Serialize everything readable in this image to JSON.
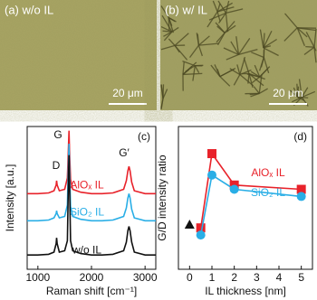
{
  "panels": [
    {
      "label": "(a) w/o IL",
      "scale_bar": "20 μm"
    },
    {
      "label": "(b) w/ IL",
      "scale_bar": "20 μm"
    }
  ],
  "chart_data": [
    {
      "type": "line",
      "label": "(c)",
      "x_label": "Raman shift [cm⁻¹]",
      "y_label": "Intensity [a.u.]",
      "annotations": [
        "D",
        "G",
        "G′"
      ],
      "x": [
        800,
        1000,
        1200,
        1300,
        1340,
        1350,
        1360,
        1400,
        1500,
        1550,
        1570,
        1580,
        1590,
        1610,
        1650,
        1800,
        2000,
        2200,
        2400,
        2600,
        2650,
        2680,
        2700,
        2720,
        2750,
        2800,
        3000,
        3200
      ],
      "series": [
        {
          "name": "AlOₓ IL",
          "color": "#e8222a",
          "values": [
            5.3,
            5.3,
            5.35,
            5.5,
            5.9,
            6.2,
            5.9,
            5.5,
            5.6,
            6.4,
            8.6,
            9.7,
            8.4,
            6.3,
            5.6,
            5.4,
            5.3,
            5.3,
            5.35,
            5.6,
            6.2,
            6.9,
            7.2,
            6.9,
            6.1,
            5.5,
            5.3,
            5.3
          ]
        },
        {
          "name": "SiO₂ IL",
          "color": "#29aee6",
          "values": [
            3.4,
            3.4,
            3.45,
            3.6,
            3.9,
            4.1,
            3.9,
            3.6,
            3.7,
            4.5,
            7.6,
            8.8,
            7.4,
            4.4,
            3.7,
            3.5,
            3.4,
            3.4,
            3.45,
            3.7,
            4.3,
            5.0,
            5.3,
            5.0,
            4.2,
            3.6,
            3.4,
            3.4
          ]
        },
        {
          "name": "w/o IL",
          "color": "#111111",
          "values": [
            1,
            1,
            1.05,
            1.2,
            1.8,
            2.2,
            1.8,
            1.2,
            1.3,
            2.0,
            6.5,
            8.0,
            6.3,
            2.0,
            1.3,
            1.1,
            1,
            1,
            1.05,
            1.3,
            1.9,
            2.7,
            3.0,
            2.7,
            1.9,
            1.2,
            1,
            1
          ]
        }
      ],
      "xlim": [
        800,
        3200
      ],
      "xticks": [
        1000,
        2000,
        3000
      ],
      "ylim": [
        0,
        10
      ]
    },
    {
      "type": "scatter",
      "label": "(d)",
      "x_label": "IL thickness [nm]",
      "y_label": "G/D intensity ratio",
      "series": [
        {
          "name": "AlOₓ IL",
          "color": "#e8222a",
          "marker": "square",
          "x": [
            0.5,
            1,
            2,
            5
          ],
          "values": [
            2.9,
            8.1,
            5.9,
            5.6
          ]
        },
        {
          "name": "SiO₂ IL",
          "color": "#29aee6",
          "marker": "circle",
          "x": [
            0.5,
            1,
            2,
            5
          ],
          "values": [
            2.4,
            6.6,
            5.6,
            5.1
          ]
        },
        {
          "color": "#111111",
          "marker": "triangle",
          "x": [
            0
          ],
          "values": [
            3.1
          ]
        }
      ],
      "xlim": [
        -0.5,
        5.5
      ],
      "xticks": [
        0,
        1,
        2,
        3,
        4,
        5
      ],
      "ylim": [
        0,
        10
      ]
    }
  ]
}
